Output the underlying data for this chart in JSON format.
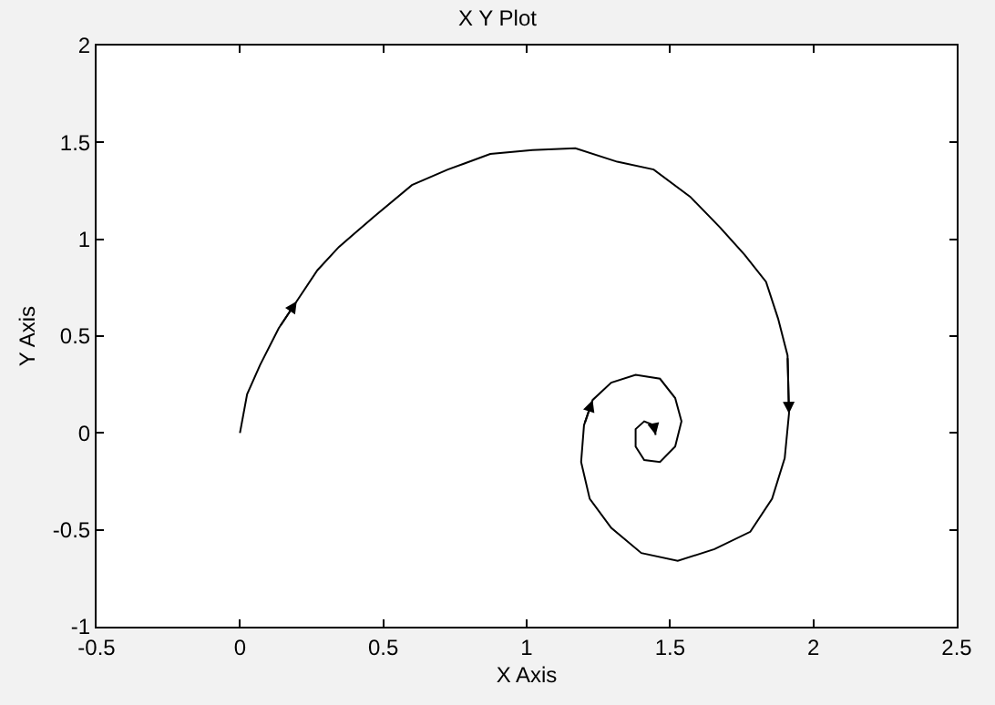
{
  "chart_data": {
    "type": "line",
    "title": "X Y Plot",
    "xlabel": "X Axis",
    "ylabel": "Y Axis",
    "xlim": [
      -0.5,
      2.5
    ],
    "xticks": [
      -0.5,
      0,
      0.5,
      1,
      1.5,
      2,
      2.5
    ],
    "ylim": [
      -1,
      2
    ],
    "yticks": [
      -1,
      -0.5,
      0,
      0.5,
      1,
      1.5,
      2
    ],
    "marker": "none",
    "line_style": "solid",
    "series": [
      {
        "color": "#000000",
        "x": [
          0,
          0.025,
          0.07,
          0.135,
          0.198,
          0.27,
          0.345,
          0.47,
          0.6,
          0.725,
          0.873,
          1.02,
          1.17,
          1.316,
          1.443,
          1.57,
          1.675,
          1.76,
          1.835,
          1.877,
          1.91,
          1.915,
          1.9,
          1.856,
          1.78,
          1.655,
          1.527,
          1.4,
          1.295,
          1.22,
          1.19,
          1.2,
          1.23,
          1.295,
          1.38,
          1.465,
          1.518,
          1.54,
          1.518,
          1.465,
          1.41,
          1.38,
          1.38,
          1.41,
          1.443,
          1.45
        ],
        "values": [
          0,
          0.2,
          0.35,
          0.54,
          0.68,
          0.84,
          0.96,
          1.12,
          1.28,
          1.36,
          1.44,
          1.46,
          1.47,
          1.4,
          1.36,
          1.22,
          1.06,
          0.92,
          0.78,
          0.59,
          0.4,
          0.1,
          -0.13,
          -0.34,
          -0.51,
          -0.6,
          -0.66,
          -0.62,
          -0.49,
          -0.34,
          -0.15,
          0.04,
          0.17,
          0.26,
          0.3,
          0.28,
          0.18,
          0.06,
          -0.07,
          -0.15,
          -0.14,
          -0.07,
          0.02,
          0.06,
          0.04,
          -0.01
        ]
      }
    ]
  }
}
